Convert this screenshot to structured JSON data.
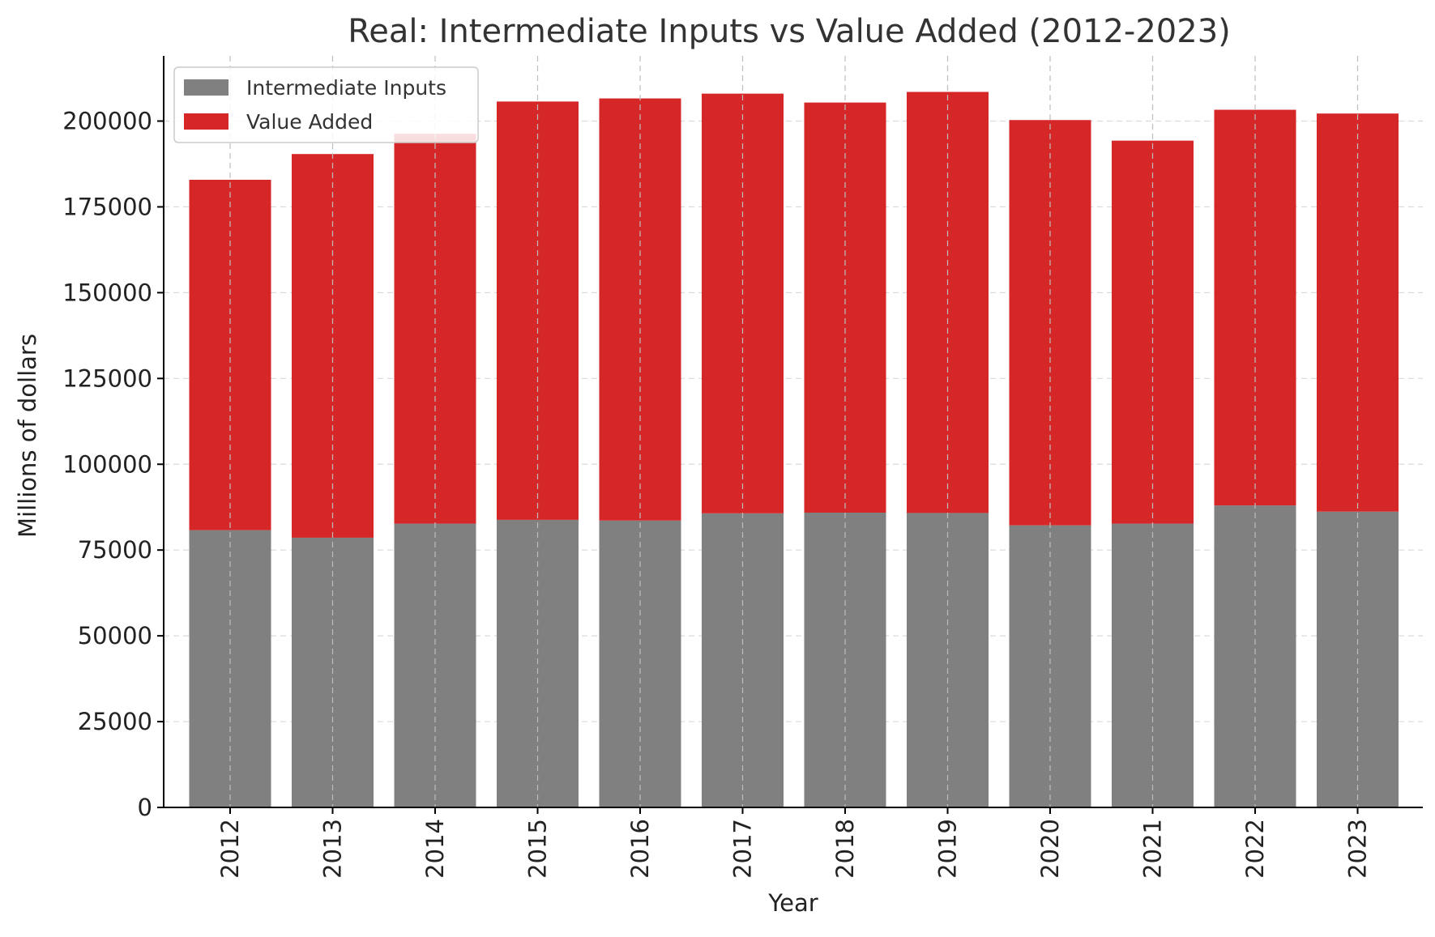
{
  "chart_data": {
    "type": "bar",
    "stacked": true,
    "title": "Real: Intermediate Inputs vs Value Added (2012-2023)",
    "xlabel": "Year",
    "ylabel": "Millions of dollars",
    "categories": [
      "2012",
      "2013",
      "2014",
      "2015",
      "2016",
      "2017",
      "2018",
      "2019",
      "2020",
      "2021",
      "2022",
      "2023"
    ],
    "series": [
      {
        "name": "Intermediate Inputs",
        "color": "#808080",
        "values": [
          80800,
          78600,
          82700,
          83800,
          83600,
          85700,
          85900,
          85800,
          82200,
          82700,
          88000,
          86200
        ]
      },
      {
        "name": "Value Added",
        "color": "#d62728",
        "values": [
          102100,
          111800,
          113600,
          121900,
          123000,
          122300,
          119500,
          122700,
          118100,
          111600,
          115300,
          116000
        ]
      }
    ],
    "ylim": [
      0,
      219000
    ],
    "yticks": [
      0,
      25000,
      50000,
      75000,
      100000,
      125000,
      150000,
      175000,
      200000
    ],
    "ytick_labels": [
      "0",
      "25000",
      "50000",
      "75000",
      "100000",
      "125000",
      "150000",
      "175000",
      "200000"
    ],
    "grid": true,
    "legend_position": "top-left"
  }
}
